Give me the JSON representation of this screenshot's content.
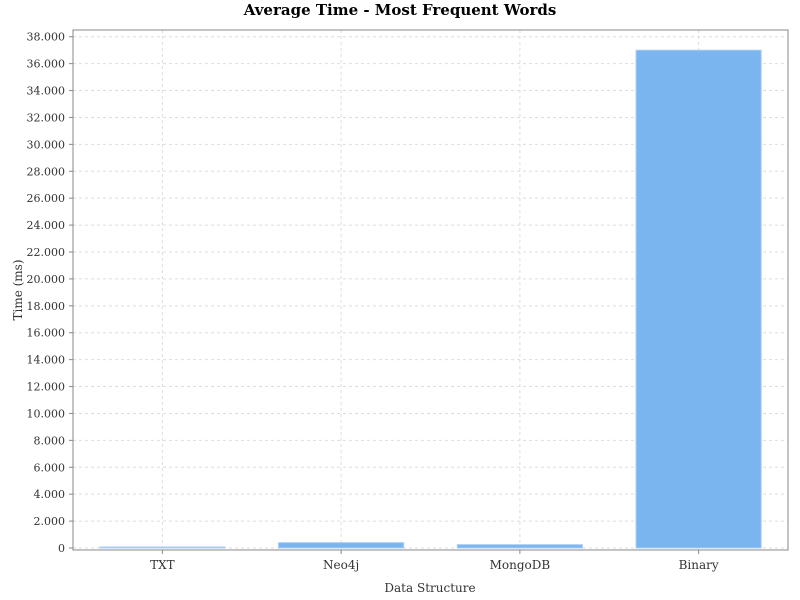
{
  "chart_data": {
    "type": "bar",
    "title": "Average Time - Most Frequent Words",
    "xlabel": "Data Structure",
    "ylabel": "Time (ms)",
    "categories": [
      "TXT",
      "Neo4j",
      "MongoDB",
      "Binary"
    ],
    "values": [
      0.05,
      0.4,
      0.25,
      37.0
    ],
    "ylim": [
      0,
      38.5
    ],
    "yticks": [
      0,
      2,
      4,
      6,
      8,
      10,
      12,
      14,
      16,
      18,
      20,
      22,
      24,
      26,
      28,
      30,
      32,
      34,
      36,
      38
    ],
    "ytick_labels": [
      "0",
      "2.000",
      "4.000",
      "6.000",
      "8.000",
      "10.000",
      "12.000",
      "14.000",
      "16.000",
      "18.000",
      "20.000",
      "22.000",
      "24.000",
      "26.000",
      "28.000",
      "30.000",
      "32.000",
      "34.000",
      "36.000",
      "38.000"
    ],
    "grid": true,
    "bar_color": "#7bb5f0",
    "grid_color": "#dddddd",
    "frame_color": "#888888"
  }
}
